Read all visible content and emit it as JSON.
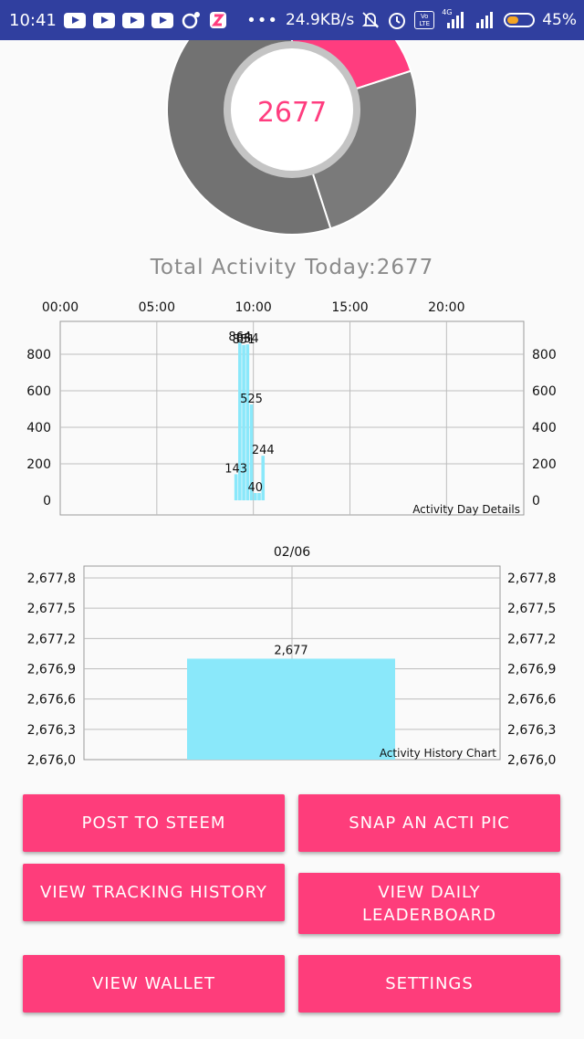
{
  "status_bar": {
    "time": "10:41",
    "network_speed": "24.9KB/s",
    "signal_label": "4G",
    "volte_label": "Vo LTE",
    "battery": "45%",
    "battery_level": 0.45,
    "icons": [
      "youtube-icon",
      "youtube-icon",
      "youtube-icon",
      "youtube-icon",
      "notification-icon",
      "app-icon",
      "more-dots-icon",
      "mute-icon",
      "alarm-icon",
      "volte-icon",
      "signal-icon",
      "signal-icon",
      "battery-icon"
    ]
  },
  "donut": {
    "center_value": "2677",
    "slices": [
      {
        "value": 0.2,
        "color": "#ff3d7f"
      },
      {
        "value": 0.25,
        "color": "#7a7a7a"
      },
      {
        "value": 0.55,
        "color": "#727272"
      }
    ]
  },
  "total_label": "Total Activity Today:2677",
  "colors": {
    "accent": "#fe3d7b",
    "bar": "#8ae8fa",
    "grid": "#bdbdbd",
    "status_bar": "#303f9f"
  },
  "chart_data": [
    {
      "type": "bar",
      "title": "Activity Day Details",
      "x_ticks": [
        "00:00",
        "05:00",
        "10:00",
        "15:00",
        "20:00"
      ],
      "y_ticks": [
        "0",
        "200",
        "400",
        "600",
        "800"
      ],
      "ylim": [
        0,
        950
      ],
      "xlim": [
        0,
        24
      ],
      "grid": true,
      "series": [
        {
          "x": [
            9.1,
            9.3,
            9.5,
            9.7,
            9.9,
            10.1,
            10.3,
            10.5
          ],
          "values": [
            143,
            864,
            851,
            854,
            525,
            40,
            40,
            244
          ],
          "labels": [
            "143",
            "864",
            "851",
            "854",
            "525",
            "40",
            "",
            "244"
          ]
        }
      ]
    },
    {
      "type": "bar",
      "title": "Activity History Chart",
      "categories": [
        "02/06"
      ],
      "values": [
        2677
      ],
      "value_labels": [
        "2,677"
      ],
      "y_ticks": [
        "2,676,0",
        "2,676,3",
        "2,676,6",
        "2,676,9",
        "2,677,2",
        "2,677,5",
        "2,677,8"
      ],
      "ylim": [
        2676.0,
        2677.8
      ],
      "grid": true
    }
  ],
  "buttons": {
    "post_to_steem": "POST TO STEEM",
    "snap_acti_pic": "SNAP AN ACTI PIC",
    "view_tracking_history": "VIEW TRACKING HISTORY",
    "view_daily_leaderboard_line1": "VIEW DAILY",
    "view_daily_leaderboard_line2": "LEADERBOARD",
    "view_wallet": "VIEW WALLET",
    "settings": "SETTINGS"
  }
}
